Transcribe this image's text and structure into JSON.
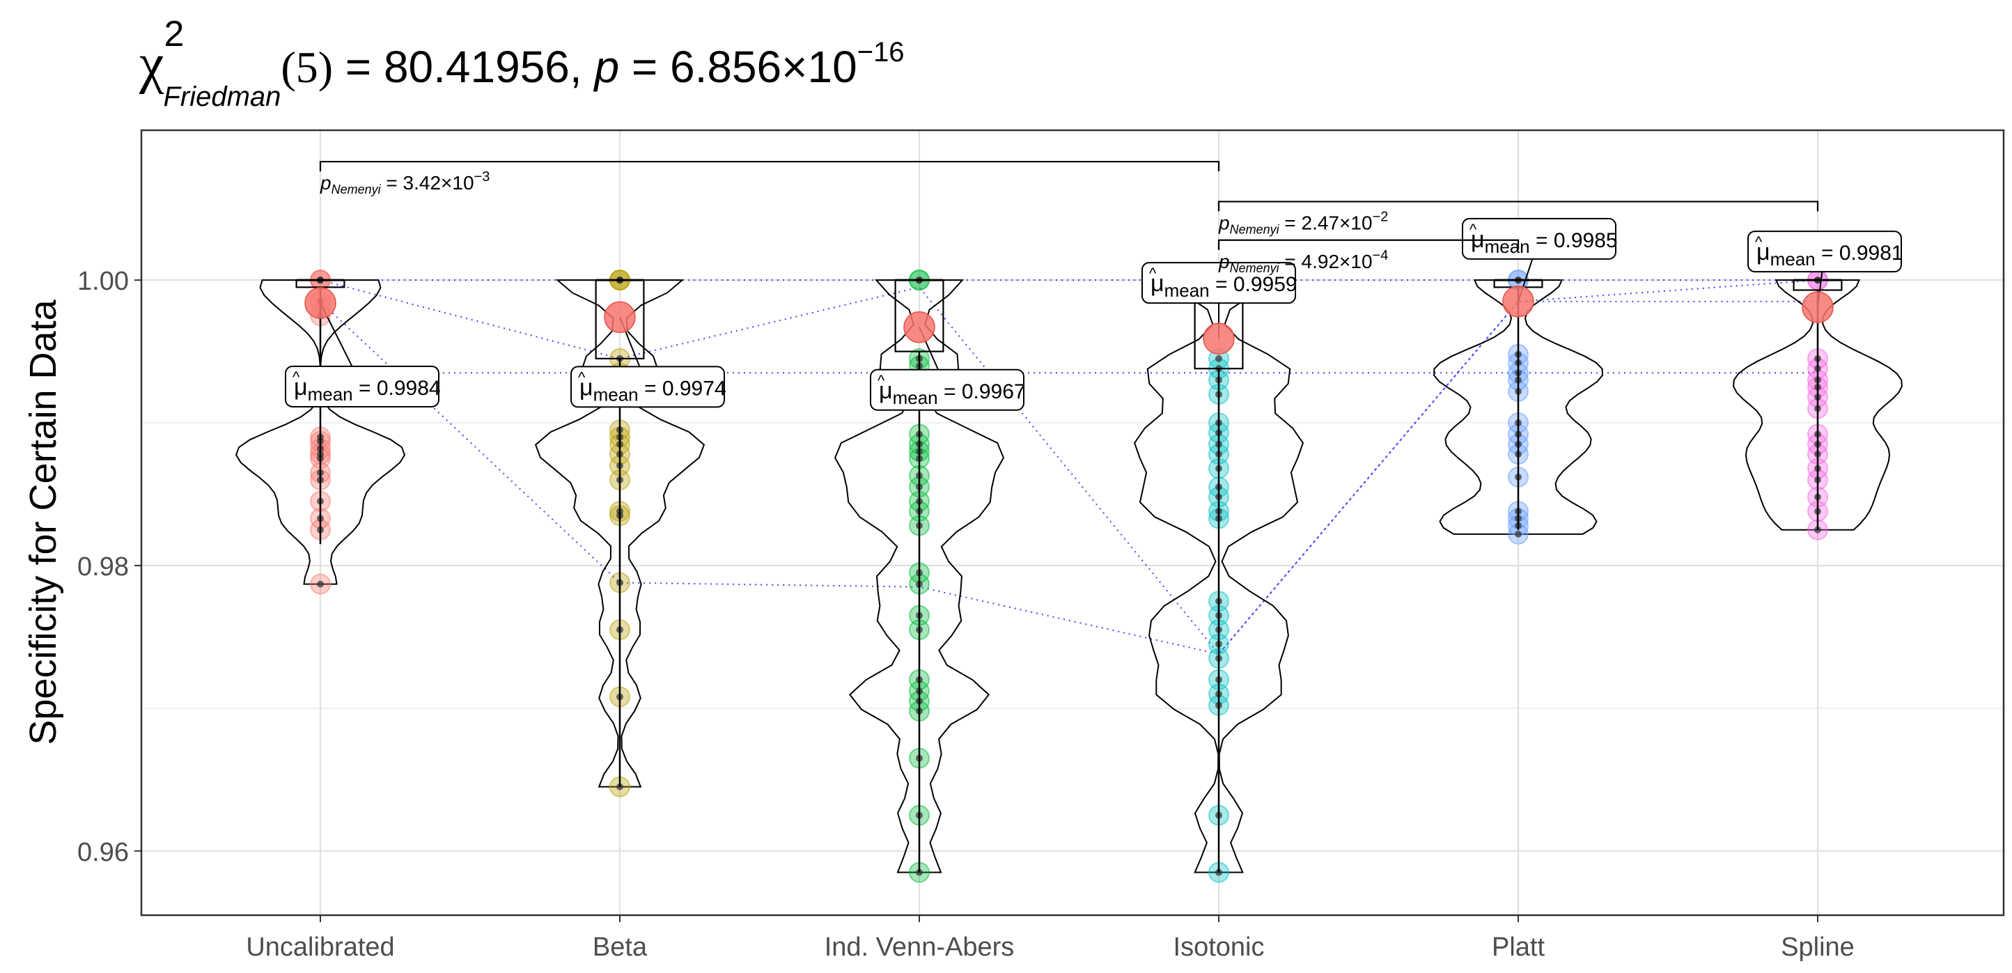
{
  "chart_data": {
    "type": "violin-box-scatter",
    "title": {
      "symbol": "χ",
      "sup": "2",
      "sub": "Friedman",
      "df": "(5)",
      "stat": " = 80.41956, ",
      "p_label": "p",
      "p_value": " = 6.856×10",
      "p_exp": "−16"
    },
    "ylabel": "Specificity for Certain Data",
    "xlabel": "",
    "ylim": [
      0.9555,
      1.0105
    ],
    "yticks": [
      0.96,
      0.98,
      1.0
    ],
    "ytick_labels": [
      "0.96",
      "0.98",
      "1.00"
    ],
    "grid": true,
    "categories": [
      "Uncalibrated",
      "Beta",
      "Ind. Venn-Abers",
      "Isotonic",
      "Platt",
      "Spline"
    ],
    "colors": [
      "#F8766D",
      "#B79F00",
      "#00BA38",
      "#00BFC4",
      "#619CFF",
      "#F564E3"
    ],
    "means": [
      0.9984,
      0.9974,
      0.9967,
      0.9959,
      0.9985,
      0.9981
    ],
    "mean_labels": [
      {
        "pre": "μ",
        "sub": "mean",
        "val": " = 0.9984"
      },
      {
        "pre": "μ",
        "sub": "mean",
        "val": " = 0.9974"
      },
      {
        "pre": "μ",
        "sub": "mean",
        "val": " = 0.9967"
      },
      {
        "pre": "μ",
        "sub": "mean",
        "val": " = 0.9959"
      },
      {
        "pre": "μ",
        "sub": "mean",
        "val": " = 0.9985"
      },
      {
        "pre": "μ",
        "sub": "mean",
        "val": " = 0.9981"
      }
    ],
    "boxes": [
      {
        "q1": 0.9995,
        "median": 1.0,
        "q3": 1.0,
        "whisker_low": 0.9815,
        "whisker_high": 1.0
      },
      {
        "q1": 0.9945,
        "median": 1.0,
        "q3": 1.0,
        "whisker_low": 0.9645,
        "whisker_high": 1.0
      },
      {
        "q1": 0.995,
        "median": 1.0,
        "q3": 1.0,
        "whisker_low": 0.9585,
        "whisker_high": 1.0
      },
      {
        "q1": 0.9938,
        "median": 1.0,
        "q3": 1.0,
        "whisker_low": 0.9585,
        "whisker_high": 1.0
      },
      {
        "q1": 0.9995,
        "median": 1.0,
        "q3": 1.0,
        "whisker_low": 0.9825,
        "whisker_high": 1.0
      },
      {
        "q1": 0.9993,
        "median": 1.0,
        "q3": 1.0,
        "whisker_low": 0.9825,
        "whisker_high": 1.0
      }
    ],
    "violin_half_width": [
      0.45,
      0.45,
      0.45,
      0.45,
      0.45,
      0.45
    ],
    "points": [
      [
        1.0,
        1.0,
        1.0,
        0.9985,
        0.9975,
        0.989,
        0.9887,
        0.9882,
        0.9878,
        0.9875,
        0.9865,
        0.986,
        0.9845,
        0.9833,
        0.9825,
        0.9787
      ],
      [
        1.0,
        1.0,
        1.0,
        0.9945,
        0.9935,
        0.9895,
        0.989,
        0.9885,
        0.9878,
        0.987,
        0.986,
        0.9838,
        0.9835,
        0.9788,
        0.9755,
        0.9708,
        0.9645
      ],
      [
        1.0,
        1.0,
        0.9945,
        0.994,
        0.9892,
        0.9885,
        0.988,
        0.9875,
        0.9863,
        0.9855,
        0.9845,
        0.9838,
        0.9828,
        0.9795,
        0.9787,
        0.9765,
        0.9755,
        0.972,
        0.9712,
        0.9705,
        0.9698,
        0.9665,
        0.9625,
        0.9585
      ],
      [
        1.0,
        1.0,
        0.9945,
        0.9938,
        0.993,
        0.992,
        0.99,
        0.9893,
        0.9885,
        0.9878,
        0.9868,
        0.9855,
        0.9848,
        0.9838,
        0.9833,
        0.9775,
        0.9765,
        0.9755,
        0.9745,
        0.9735,
        0.972,
        0.971,
        0.9702,
        0.9625,
        0.9585
      ],
      [
        1.0,
        1.0,
        0.9948,
        0.9942,
        0.9935,
        0.993,
        0.9922,
        0.99,
        0.9892,
        0.9885,
        0.9878,
        0.9862,
        0.9838,
        0.9833,
        0.9828,
        0.9822
      ],
      [
        1.0,
        1.0,
        0.9945,
        0.9938,
        0.993,
        0.9925,
        0.9918,
        0.991,
        0.9892,
        0.9885,
        0.9878,
        0.9868,
        0.986,
        0.9848,
        0.9838,
        0.9825
      ]
    ],
    "trend_lines": [
      [
        1.0,
        0.9945,
        0.9995,
        0.9738,
        0.9985,
        1.0
      ],
      [
        0.9935,
        0.9935,
        0.9935,
        0.9935,
        0.9935,
        0.9935
      ],
      [
        1.0,
        1.0,
        1.0,
        1.0,
        1.0,
        1.0
      ],
      [
        0.9985,
        0.9788,
        0.9785,
        0.9738,
        0.9985,
        0.9985
      ]
    ],
    "comparisons": [
      {
        "from": 0,
        "to": 3,
        "y": 1.0083,
        "label_pre": "p",
        "label_sub": "Nemenyi",
        "label_val": " = 3.42×10",
        "label_exp": "−3"
      },
      {
        "from": 3,
        "to": 5,
        "y": 1.0055,
        "label_pre": "p",
        "label_sub": "Nemenyi",
        "label_val": " = 2.47×10",
        "label_exp": "−2"
      },
      {
        "from": 3,
        "to": 4,
        "y": 1.0028,
        "label_pre": "p",
        "label_sub": "Nemenyi",
        "label_val": " = 4.92×10",
        "label_exp": "−4"
      }
    ]
  }
}
